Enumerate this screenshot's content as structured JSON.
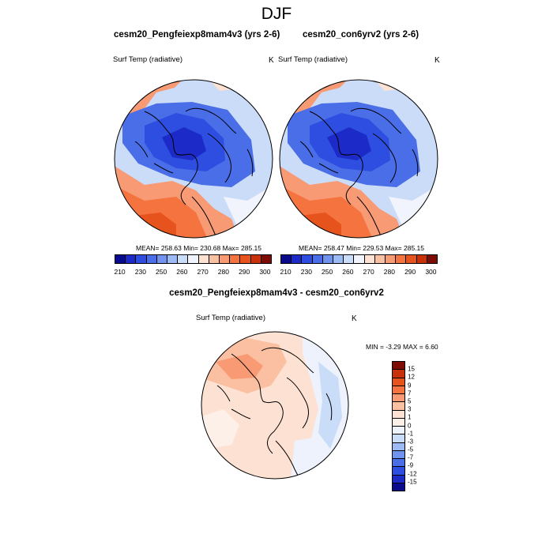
{
  "page_title": "DJF",
  "variable_label": "Surf Temp (radiative)",
  "units": "K",
  "panels": [
    {
      "title": "cesm20_Pengfeiexp8mam4v3 (yrs 2-6)",
      "stats": "MEAN= 258.63  Min= 230.68  Max= 285.15"
    },
    {
      "title": "cesm20_con6yrv2 (yrs 2-6)",
      "stats": "MEAN= 258.47  Min= 229.53  Max= 285.15"
    }
  ],
  "diff_panel": {
    "title": "cesm20_Pengfeiexp8mam4v3 - cesm20_con6yrv2",
    "stats": "MIN =  -3.29 MAX =   6.60"
  },
  "abs_colorbar": {
    "labels": [
      "210",
      "230",
      "250",
      "260",
      "270",
      "280",
      "290",
      "300"
    ],
    "colors": [
      "#0a0a8c",
      "#1c2bc8",
      "#2d4ee0",
      "#4a6ee8",
      "#6f93ee",
      "#9cbaf4",
      "#c9dcf8",
      "#f1f4fc",
      "#fde2d4",
      "#fbbfa2",
      "#f89a74",
      "#f4733f",
      "#e7531c",
      "#c8320b",
      "#7e0c05"
    ]
  },
  "diff_colorbar": {
    "labels": [
      "15",
      "12",
      "9",
      "7",
      "5",
      "3",
      "1",
      "0",
      "-1",
      "-3",
      "-5",
      "-7",
      "-9",
      "-12",
      "-15"
    ],
    "colors": [
      "#7e0c05",
      "#c8320b",
      "#e7531c",
      "#f4733f",
      "#f89a74",
      "#fbbfa2",
      "#fde2d4",
      "#fdf0e8",
      "#edf2fc",
      "#c9dcf8",
      "#9cbaf4",
      "#6f93ee",
      "#4a6ee8",
      "#2d4ee0",
      "#1c2bc8",
      "#0a0a8c"
    ]
  }
}
